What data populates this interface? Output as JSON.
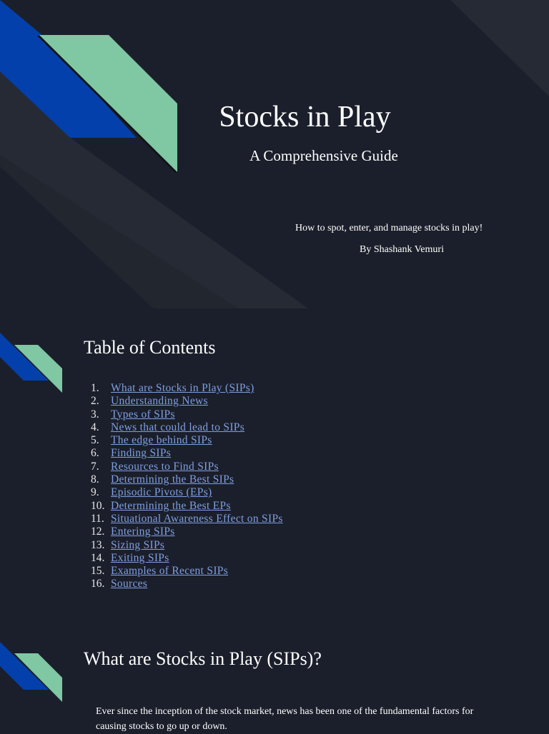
{
  "colors": {
    "background": "#1b1f2b",
    "band": "#262a35",
    "blue": "#0340ab",
    "green": "#80c7a3",
    "link": "#7f9fe0"
  },
  "slide1": {
    "title": "Stocks in Play",
    "subtitle": "A Comprehensive Guide",
    "tagline": "How to spot, enter, and manage stocks in play!",
    "author": "By Shashank Vemuri"
  },
  "slide2": {
    "heading": "Table of Contents",
    "items": [
      {
        "num": "1.",
        "label": "What are Stocks in Play (SIPs)"
      },
      {
        "num": "2.",
        "label": "Understanding News"
      },
      {
        "num": "3.",
        "label": "Types of SIPs"
      },
      {
        "num": "4.",
        "label": "News that could lead to SIPs"
      },
      {
        "num": "5.",
        "label": "The edge behind SIPs"
      },
      {
        "num": "6.",
        "label": "Finding SIPs"
      },
      {
        "num": "7.",
        "label": "Resources to Find SIPs"
      },
      {
        "num": "8.",
        "label": "Determining the Best SIPs"
      },
      {
        "num": "9.",
        "label": "Episodic Pivots (EPs)"
      },
      {
        "num": "10.",
        "label": "Determining the Best EPs"
      },
      {
        "num": "11.",
        "label": "Situational Awareness Effect on SIPs"
      },
      {
        "num": "12.",
        "label": "Entering SIPs"
      },
      {
        "num": "13.",
        "label": "Sizing SIPs"
      },
      {
        "num": "14.",
        "label": "Exiting SIPs"
      },
      {
        "num": "15.",
        "label": "Examples of Recent SIPs"
      },
      {
        "num": "16.",
        "label": "Sources"
      }
    ]
  },
  "slide3": {
    "heading": "What are Stocks in Play (SIPs)?",
    "body": "Ever since the inception of the stock market, news has been one of the fundamental factors for causing stocks to go up or down."
  }
}
